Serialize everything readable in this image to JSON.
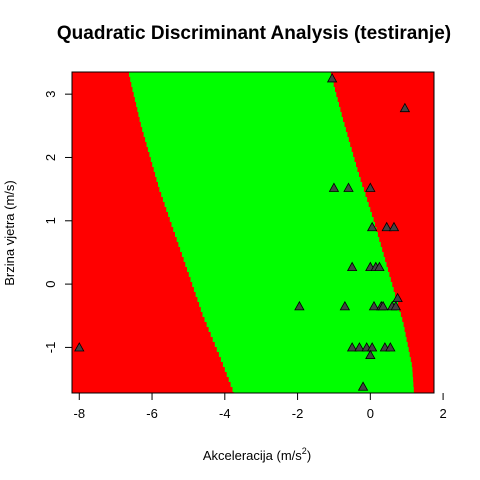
{
  "chart_data": {
    "type": "scatter",
    "title": "Quadratic Discriminant Analysis (testiranje)",
    "xlabel_main": "Akceleracija (m/s",
    "xlabel_sup": "2",
    "xlabel_end": ")",
    "ylabel": "Brzina vjetra (m/s)",
    "xlim": [
      -8.2,
      1.75
    ],
    "ylim": [
      -1.72,
      3.35
    ],
    "x_ticks": [
      -8,
      -6,
      -4,
      -2,
      0,
      2
    ],
    "x_tick_labels": [
      "-8",
      "-6",
      "-4",
      "-2",
      "0",
      "2"
    ],
    "y_ticks": [
      -1,
      0,
      1,
      2,
      3
    ],
    "y_tick_labels": [
      "-1",
      "0",
      "1",
      "2",
      "3"
    ],
    "grid": false,
    "region_colors": {
      "outer": "#ff0000",
      "inner": "#00ff00"
    },
    "decision_boundary_left": [
      [
        -6.65,
        3.35
      ],
      [
        -6.3,
        2.5
      ],
      [
        -5.8,
        1.5
      ],
      [
        -5.2,
        0.5
      ],
      [
        -4.6,
        -0.5
      ],
      [
        -4.1,
        -1.2
      ],
      [
        -3.75,
        -1.72
      ]
    ],
    "decision_boundary_right": [
      [
        -1.1,
        3.35
      ],
      [
        -0.75,
        2.6
      ],
      [
        -0.35,
        1.8
      ],
      [
        0.1,
        1.0
      ],
      [
        0.5,
        0.2
      ],
      [
        0.9,
        -0.6
      ],
      [
        1.15,
        -1.3
      ],
      [
        1.2,
        -1.72
      ]
    ],
    "marker": "triangle",
    "points": [
      {
        "x": -8.0,
        "y": -1.0
      },
      {
        "x": -1.05,
        "y": 3.25
      },
      {
        "x": 0.95,
        "y": 2.78
      },
      {
        "x": -1.0,
        "y": 1.52
      },
      {
        "x": -0.6,
        "y": 1.52
      },
      {
        "x": 0.0,
        "y": 1.52
      },
      {
        "x": 0.05,
        "y": 0.9
      },
      {
        "x": 0.45,
        "y": 0.9
      },
      {
        "x": 0.65,
        "y": 0.9
      },
      {
        "x": -0.5,
        "y": 0.27
      },
      {
        "x": 0.0,
        "y": 0.27
      },
      {
        "x": 0.15,
        "y": 0.27
      },
      {
        "x": 0.25,
        "y": 0.27
      },
      {
        "x": -1.95,
        "y": -0.35
      },
      {
        "x": -0.7,
        "y": -0.35
      },
      {
        "x": 0.1,
        "y": -0.35
      },
      {
        "x": 0.3,
        "y": -0.35
      },
      {
        "x": 0.35,
        "y": -0.35
      },
      {
        "x": 0.6,
        "y": -0.35
      },
      {
        "x": 0.7,
        "y": -0.35
      },
      {
        "x": 0.75,
        "y": -0.22
      },
      {
        "x": -0.5,
        "y": -1.0
      },
      {
        "x": -0.3,
        "y": -1.0
      },
      {
        "x": -0.1,
        "y": -1.0
      },
      {
        "x": 0.05,
        "y": -1.0
      },
      {
        "x": 0.4,
        "y": -1.0
      },
      {
        "x": 0.55,
        "y": -1.0
      },
      {
        "x": 0.0,
        "y": -1.12
      },
      {
        "x": -0.2,
        "y": -1.62
      }
    ]
  }
}
